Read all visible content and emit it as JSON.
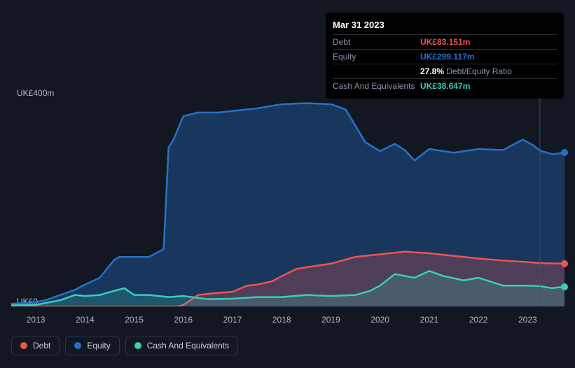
{
  "chart": {
    "type": "area",
    "background_color": "#131722",
    "grid_color": "#2b3246",
    "yaxis": {
      "min": 0,
      "max": 400,
      "ticks": [
        {
          "value": 0,
          "label": "UK£0"
        },
        {
          "value": 400,
          "label": "UK£400m"
        }
      ],
      "label_fontsize": 12,
      "label_color": "#b0b8c9"
    },
    "xaxis": {
      "min": 2012.5,
      "max": 2023.75,
      "ticks": [
        2013,
        2014,
        2015,
        2016,
        2017,
        2018,
        2019,
        2020,
        2021,
        2022,
        2023
      ],
      "label_fontsize": 12,
      "label_color": "#b0b8c9"
    },
    "series": [
      {
        "id": "equity",
        "label": "Equity",
        "color": "#2472c8",
        "fill_opacity": 0.35,
        "line_width": 2.5,
        "points": [
          [
            2012.5,
            5
          ],
          [
            2013.0,
            8
          ],
          [
            2013.2,
            12
          ],
          [
            2013.5,
            22
          ],
          [
            2013.8,
            32
          ],
          [
            2014.0,
            42
          ],
          [
            2014.3,
            55
          ],
          [
            2014.6,
            90
          ],
          [
            2014.7,
            95
          ],
          [
            2015.0,
            95
          ],
          [
            2015.3,
            95
          ],
          [
            2015.6,
            110
          ],
          [
            2015.7,
            305
          ],
          [
            2015.8,
            320
          ],
          [
            2016.0,
            365
          ],
          [
            2016.3,
            372
          ],
          [
            2016.7,
            372
          ],
          [
            2017.0,
            375
          ],
          [
            2017.5,
            380
          ],
          [
            2018.0,
            388
          ],
          [
            2018.5,
            390
          ],
          [
            2019.0,
            388
          ],
          [
            2019.3,
            378
          ],
          [
            2019.7,
            315
          ],
          [
            2020.0,
            298
          ],
          [
            2020.3,
            312
          ],
          [
            2020.5,
            300
          ],
          [
            2020.7,
            280
          ],
          [
            2021.0,
            302
          ],
          [
            2021.5,
            295
          ],
          [
            2022.0,
            302
          ],
          [
            2022.5,
            300
          ],
          [
            2022.9,
            320
          ],
          [
            2023.1,
            310
          ],
          [
            2023.25,
            299
          ],
          [
            2023.5,
            292
          ],
          [
            2023.75,
            295
          ]
        ]
      },
      {
        "id": "debt",
        "label": "Debt",
        "color": "#ef5350",
        "fill_opacity": 0.25,
        "line_width": 2.5,
        "points": [
          [
            2012.5,
            0
          ],
          [
            2013.0,
            0
          ],
          [
            2013.5,
            0
          ],
          [
            2014.0,
            0
          ],
          [
            2014.5,
            0
          ],
          [
            2015.0,
            0
          ],
          [
            2015.5,
            0
          ],
          [
            2015.9,
            0
          ],
          [
            2016.0,
            3
          ],
          [
            2016.3,
            22
          ],
          [
            2016.7,
            26
          ],
          [
            2017.0,
            28
          ],
          [
            2017.3,
            40
          ],
          [
            2017.5,
            42
          ],
          [
            2017.8,
            48
          ],
          [
            2018.0,
            58
          ],
          [
            2018.3,
            72
          ],
          [
            2018.7,
            78
          ],
          [
            2019.0,
            82
          ],
          [
            2019.5,
            95
          ],
          [
            2020.0,
            100
          ],
          [
            2020.5,
            105
          ],
          [
            2021.0,
            102
          ],
          [
            2021.5,
            97
          ],
          [
            2022.0,
            92
          ],
          [
            2022.5,
            88
          ],
          [
            2023.0,
            85
          ],
          [
            2023.25,
            83
          ],
          [
            2023.75,
            82
          ]
        ]
      },
      {
        "id": "cash",
        "label": "Cash And Equivalents",
        "color": "#35d0ba",
        "fill_opacity": 0.2,
        "line_width": 2.5,
        "points": [
          [
            2012.5,
            2
          ],
          [
            2013.0,
            3
          ],
          [
            2013.5,
            12
          ],
          [
            2013.8,
            22
          ],
          [
            2014.0,
            20
          ],
          [
            2014.3,
            22
          ],
          [
            2014.6,
            30
          ],
          [
            2014.8,
            35
          ],
          [
            2015.0,
            22
          ],
          [
            2015.3,
            22
          ],
          [
            2015.7,
            18
          ],
          [
            2016.0,
            20
          ],
          [
            2016.5,
            14
          ],
          [
            2017.0,
            15
          ],
          [
            2017.5,
            18
          ],
          [
            2018.0,
            18
          ],
          [
            2018.5,
            22
          ],
          [
            2019.0,
            20
          ],
          [
            2019.5,
            22
          ],
          [
            2019.8,
            30
          ],
          [
            2020.0,
            40
          ],
          [
            2020.3,
            62
          ],
          [
            2020.7,
            55
          ],
          [
            2021.0,
            68
          ],
          [
            2021.3,
            58
          ],
          [
            2021.7,
            50
          ],
          [
            2022.0,
            55
          ],
          [
            2022.5,
            40
          ],
          [
            2023.0,
            40
          ],
          [
            2023.25,
            39
          ],
          [
            2023.5,
            35
          ],
          [
            2023.75,
            38
          ]
        ]
      }
    ],
    "cursor_x": 2023.25,
    "cursor_line_color": "#4a5268",
    "end_dots": true
  },
  "tooltip": {
    "title": "Mar 31 2023",
    "rows": [
      {
        "key": "Debt",
        "value": "UK£83.151m",
        "value_color": "#ef5350"
      },
      {
        "key": "Equity",
        "value": "UK£299.117m",
        "value_color": "#2472c8"
      },
      {
        "key": "",
        "value": "27.8%",
        "suffix": "Debt/Equity Ratio",
        "value_color": "#ffffff",
        "suffix_color": "#8a93a6"
      },
      {
        "key": "Cash And Equivalents",
        "value": "UK£38.647m",
        "value_color": "#35d0ba"
      }
    ]
  },
  "legend": {
    "items": [
      {
        "id": "debt",
        "label": "Debt",
        "color": "#ef5350"
      },
      {
        "id": "equity",
        "label": "Equity",
        "color": "#2472c8"
      },
      {
        "id": "cash",
        "label": "Cash And Equivalents",
        "color": "#35d0ba"
      }
    ]
  }
}
